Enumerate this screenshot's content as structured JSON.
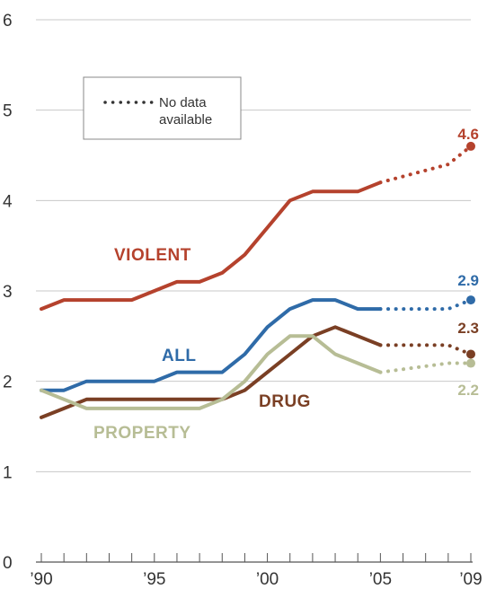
{
  "chart_data": {
    "type": "line",
    "title": "",
    "xlabel": "",
    "ylabel": "",
    "xlim": [
      1990,
      2009
    ],
    "ylim": [
      0,
      6
    ],
    "grid": "horizontal",
    "legend": {
      "position": "top-left",
      "entry_line1": "No data",
      "entry_line2": "available",
      "style": "dotted"
    },
    "x_tick_labels": [
      {
        "x": 1990,
        "label": "’90"
      },
      {
        "x": 1995,
        "label": "’95"
      },
      {
        "x": 2000,
        "label": "’00"
      },
      {
        "x": 2005,
        "label": "’05"
      },
      {
        "x": 2009,
        "label": "’09"
      }
    ],
    "y_ticks": [
      0,
      1,
      2,
      3,
      4,
      5,
      6
    ],
    "series": [
      {
        "key": "violent",
        "name": "VIOLENT",
        "color": "#b5422d",
        "solid": [
          [
            1990,
            2.8
          ],
          [
            1991,
            2.9
          ],
          [
            1992,
            2.9
          ],
          [
            1993,
            2.9
          ],
          [
            1994,
            2.9
          ],
          [
            1995,
            3.0
          ],
          [
            1996,
            3.1
          ],
          [
            1997,
            3.1
          ],
          [
            1998,
            3.2
          ],
          [
            1999,
            3.4
          ],
          [
            2000,
            3.7
          ],
          [
            2001,
            4.0
          ],
          [
            2002,
            4.1
          ],
          [
            2003,
            4.1
          ],
          [
            2004,
            4.1
          ],
          [
            2005,
            4.2
          ]
        ],
        "dotted": [
          [
            2005,
            4.2
          ],
          [
            2008,
            4.4
          ],
          [
            2009,
            4.6
          ]
        ],
        "end_value": "4.6"
      },
      {
        "key": "all",
        "name": "ALL",
        "color": "#2f6ba8",
        "solid": [
          [
            1990,
            1.9
          ],
          [
            1991,
            1.9
          ],
          [
            1992,
            2.0
          ],
          [
            1993,
            2.0
          ],
          [
            1994,
            2.0
          ],
          [
            1995,
            2.0
          ],
          [
            1996,
            2.1
          ],
          [
            1997,
            2.1
          ],
          [
            1998,
            2.1
          ],
          [
            1999,
            2.3
          ],
          [
            2000,
            2.6
          ],
          [
            2001,
            2.8
          ],
          [
            2002,
            2.9
          ],
          [
            2003,
            2.9
          ],
          [
            2004,
            2.8
          ],
          [
            2005,
            2.8
          ]
        ],
        "dotted": [
          [
            2005,
            2.8
          ],
          [
            2008,
            2.8
          ],
          [
            2009,
            2.9
          ]
        ],
        "end_value": "2.9"
      },
      {
        "key": "drug",
        "name": "DRUG",
        "color": "#7a3f24",
        "solid": [
          [
            1990,
            1.6
          ],
          [
            1991,
            1.7
          ],
          [
            1992,
            1.8
          ],
          [
            1993,
            1.8
          ],
          [
            1994,
            1.8
          ],
          [
            1995,
            1.8
          ],
          [
            1996,
            1.8
          ],
          [
            1997,
            1.8
          ],
          [
            1998,
            1.8
          ],
          [
            1999,
            1.9
          ],
          [
            2000,
            2.1
          ],
          [
            2001,
            2.3
          ],
          [
            2002,
            2.5
          ],
          [
            2003,
            2.6
          ],
          [
            2004,
            2.5
          ],
          [
            2005,
            2.4
          ]
        ],
        "dotted": [
          [
            2005,
            2.4
          ],
          [
            2008,
            2.4
          ],
          [
            2009,
            2.3
          ]
        ],
        "end_value": "2.3"
      },
      {
        "key": "property",
        "name": "PROPERTY",
        "color": "#b7bd95",
        "solid": [
          [
            1990,
            1.9
          ],
          [
            1991,
            1.8
          ],
          [
            1992,
            1.7
          ],
          [
            1993,
            1.7
          ],
          [
            1994,
            1.7
          ],
          [
            1995,
            1.7
          ],
          [
            1996,
            1.7
          ],
          [
            1997,
            1.7
          ],
          [
            1998,
            1.8
          ],
          [
            1999,
            2.0
          ],
          [
            2000,
            2.3
          ],
          [
            2001,
            2.5
          ],
          [
            2002,
            2.5
          ],
          [
            2003,
            2.3
          ],
          [
            2004,
            2.2
          ],
          [
            2005,
            2.1
          ]
        ],
        "dotted": [
          [
            2005,
            2.1
          ],
          [
            2008,
            2.2
          ],
          [
            2009,
            2.2
          ]
        ],
        "end_value": "2.2"
      }
    ]
  }
}
